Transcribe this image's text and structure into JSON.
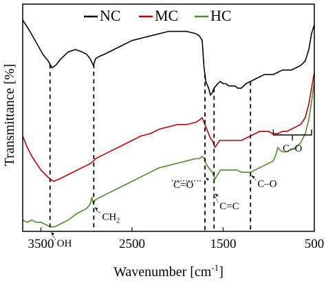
{
  "chart_data": {
    "type": "line",
    "xlabel": "Wavenumber [cm",
    "xlabel_sup": "-1",
    "xlabel_close": "]",
    "ylabel": "Transmittance [%]",
    "xlim": [
      3700,
      500
    ],
    "x_reversed": true,
    "ylim": [
      0,
      100
    ],
    "y_ticks_shown": false,
    "x_ticks": [
      3500,
      2500,
      1500,
      500
    ],
    "x_tick_labels": [
      "3500",
      "2500",
      "1500",
      "500"
    ],
    "grid": false,
    "legend_position": "top",
    "series": [
      {
        "name": "NC",
        "color": "#000000",
        "points": [
          [
            3700,
            93
          ],
          [
            3620,
            88
          ],
          [
            3550,
            83
          ],
          [
            3480,
            78
          ],
          [
            3420,
            75
          ],
          [
            3380,
            72
          ],
          [
            3340,
            73
          ],
          [
            3280,
            76
          ],
          [
            3200,
            79
          ],
          [
            3120,
            80
          ],
          [
            3050,
            79
          ],
          [
            3000,
            78
          ],
          [
            2960,
            76
          ],
          [
            2925,
            73
          ],
          [
            2900,
            76
          ],
          [
            2860,
            77
          ],
          [
            2800,
            78
          ],
          [
            2700,
            80
          ],
          [
            2600,
            82
          ],
          [
            2500,
            84
          ],
          [
            2400,
            85
          ],
          [
            2300,
            86
          ],
          [
            2200,
            87
          ],
          [
            2100,
            88
          ],
          [
            2000,
            88
          ],
          [
            1900,
            88
          ],
          [
            1800,
            87
          ],
          [
            1760,
            86
          ],
          [
            1730,
            84
          ],
          [
            1710,
            72
          ],
          [
            1690,
            66
          ],
          [
            1660,
            63
          ],
          [
            1640,
            60
          ],
          [
            1620,
            61
          ],
          [
            1600,
            63
          ],
          [
            1560,
            65
          ],
          [
            1530,
            66
          ],
          [
            1500,
            65
          ],
          [
            1470,
            65
          ],
          [
            1440,
            64
          ],
          [
            1400,
            64
          ],
          [
            1370,
            64
          ],
          [
            1340,
            63
          ],
          [
            1300,
            63
          ],
          [
            1250,
            65
          ],
          [
            1200,
            66
          ],
          [
            1150,
            67
          ],
          [
            1100,
            68
          ],
          [
            1050,
            69
          ],
          [
            1000,
            69
          ],
          [
            950,
            69
          ],
          [
            900,
            70
          ],
          [
            850,
            71
          ],
          [
            800,
            71
          ],
          [
            750,
            71
          ],
          [
            700,
            72
          ],
          [
            650,
            73
          ],
          [
            600,
            75
          ],
          [
            560,
            80
          ],
          [
            530,
            87
          ],
          [
            500,
            91
          ]
        ]
      },
      {
        "name": "MC",
        "color": "#c00000",
        "points": [
          [
            3700,
            42
          ],
          [
            3650,
            37
          ],
          [
            3600,
            33
          ],
          [
            3550,
            30
          ],
          [
            3500,
            27
          ],
          [
            3450,
            25
          ],
          [
            3400,
            23
          ],
          [
            3360,
            22
          ],
          [
            3300,
            23
          ],
          [
            3200,
            25
          ],
          [
            3100,
            27
          ],
          [
            3000,
            29
          ],
          [
            2950,
            30
          ],
          [
            2920,
            31
          ],
          [
            2900,
            32
          ],
          [
            2800,
            34
          ],
          [
            2700,
            36
          ],
          [
            2600,
            38
          ],
          [
            2500,
            40
          ],
          [
            2400,
            42
          ],
          [
            2300,
            43
          ],
          [
            2200,
            45
          ],
          [
            2100,
            46
          ],
          [
            2000,
            47
          ],
          [
            1900,
            47
          ],
          [
            1800,
            48
          ],
          [
            1760,
            49
          ],
          [
            1730,
            50
          ],
          [
            1710,
            48
          ],
          [
            1690,
            46
          ],
          [
            1660,
            43
          ],
          [
            1640,
            41
          ],
          [
            1620,
            40
          ],
          [
            1600,
            38
          ],
          [
            1590,
            37
          ],
          [
            1570,
            38
          ],
          [
            1540,
            40
          ],
          [
            1500,
            40
          ],
          [
            1450,
            40
          ],
          [
            1400,
            40
          ],
          [
            1350,
            40
          ],
          [
            1300,
            40
          ],
          [
            1250,
            41
          ],
          [
            1200,
            42
          ],
          [
            1150,
            43
          ],
          [
            1100,
            44
          ],
          [
            1050,
            44
          ],
          [
            1000,
            44
          ],
          [
            960,
            43
          ],
          [
            930,
            43
          ],
          [
            900,
            43
          ],
          [
            850,
            44
          ],
          [
            800,
            44
          ],
          [
            750,
            45
          ],
          [
            700,
            46
          ],
          [
            650,
            47
          ],
          [
            600,
            50
          ],
          [
            560,
            56
          ],
          [
            530,
            63
          ],
          [
            500,
            70
          ]
        ]
      },
      {
        "name": "HC",
        "color": "#4c8c2a",
        "points": [
          [
            3700,
            5
          ],
          [
            3650,
            4
          ],
          [
            3600,
            5
          ],
          [
            3550,
            4
          ],
          [
            3500,
            4
          ],
          [
            3450,
            3
          ],
          [
            3400,
            2
          ],
          [
            3350,
            2
          ],
          [
            3300,
            3
          ],
          [
            3200,
            5
          ],
          [
            3100,
            8
          ],
          [
            3000,
            10
          ],
          [
            2960,
            12
          ],
          [
            2940,
            15
          ],
          [
            2925,
            12
          ],
          [
            2900,
            14
          ],
          [
            2850,
            15
          ],
          [
            2800,
            16
          ],
          [
            2700,
            18
          ],
          [
            2600,
            20
          ],
          [
            2500,
            22
          ],
          [
            2400,
            24
          ],
          [
            2300,
            26
          ],
          [
            2200,
            28
          ],
          [
            2100,
            29
          ],
          [
            2000,
            30
          ],
          [
            1900,
            31
          ],
          [
            1800,
            32
          ],
          [
            1760,
            32
          ],
          [
            1730,
            33
          ],
          [
            1710,
            32
          ],
          [
            1690,
            30
          ],
          [
            1660,
            28
          ],
          [
            1640,
            27
          ],
          [
            1620,
            26
          ],
          [
            1600,
            24
          ],
          [
            1590,
            23
          ],
          [
            1560,
            25
          ],
          [
            1530,
            27
          ],
          [
            1500,
            27
          ],
          [
            1450,
            27
          ],
          [
            1400,
            27
          ],
          [
            1350,
            27
          ],
          [
            1300,
            26
          ],
          [
            1250,
            26
          ],
          [
            1200,
            26
          ],
          [
            1150,
            27
          ],
          [
            1100,
            28
          ],
          [
            1050,
            29
          ],
          [
            1000,
            30
          ],
          [
            950,
            31
          ],
          [
            920,
            34
          ],
          [
            900,
            37
          ],
          [
            880,
            36
          ],
          [
            850,
            35
          ],
          [
            800,
            35
          ],
          [
            750,
            36
          ],
          [
            700,
            37
          ],
          [
            650,
            39
          ],
          [
            600,
            43
          ],
          [
            560,
            49
          ],
          [
            530,
            57
          ],
          [
            500,
            66
          ]
        ]
      }
    ],
    "reference_lines": [
      3400,
      2920,
      1700,
      1600,
      1200
    ],
    "annotations": [
      {
        "id": "oh",
        "text": "OH",
        "x": 3400,
        "y": 0
      },
      {
        "id": "ch2",
        "text": "CH",
        "sub": "2",
        "x": 2920,
        "y": 11
      },
      {
        "id": "c-double-o",
        "text": "C=O",
        "x": 1700,
        "y": 24
      },
      {
        "id": "c-double-c",
        "text": "C=C",
        "x": 1600,
        "y": 17
      },
      {
        "id": "c-o-1",
        "text": "C–O",
        "x": 1200,
        "y": 25
      },
      {
        "id": "c-o-2",
        "text": "C–O",
        "x": 750,
        "y": 30
      }
    ],
    "bracket": {
      "from": 950,
      "to": 530,
      "label": "C–O"
    }
  }
}
